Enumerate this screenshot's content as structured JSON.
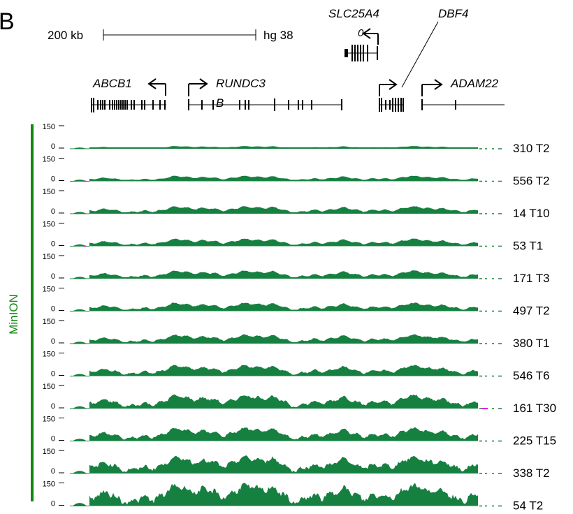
{
  "panel_label": "B",
  "scale_bar": {
    "length_label": "200 kb",
    "assembly_label": "hg 38"
  },
  "genes": [
    {
      "name": "ABCB1",
      "strand": "-"
    },
    {
      "name": "RUNDC3B",
      "name_line1": "RUNDC3",
      "name_line2": "B",
      "strand": "+"
    },
    {
      "name": "SLC25A4",
      "strand": "-",
      "extra_glyph": "0"
    },
    {
      "name": "DBF4",
      "strand": "+"
    },
    {
      "name": "ADAM22",
      "strand": "+"
    }
  ],
  "track_group_label": "MinION",
  "track_axis": {
    "max_label": "150",
    "min_label": "0"
  },
  "colors": {
    "coverage_fill": "#168040",
    "group_bar": "#0e8a0e",
    "group_label": "#0e8a0e",
    "gap_marker": "#e020e0",
    "ink": "#000000"
  },
  "tracks": [
    {
      "label": "310 T2",
      "amplitude": 0.12
    },
    {
      "label": "556 T2",
      "amplitude": 0.24
    },
    {
      "label": "14 T10",
      "amplitude": 0.33
    },
    {
      "label": "53 T1",
      "amplitude": 0.33
    },
    {
      "label": "171 T3",
      "amplitude": 0.36
    },
    {
      "label": "497 T2",
      "amplitude": 0.37
    },
    {
      "label": "380 T1",
      "amplitude": 0.4
    },
    {
      "label": "546 T6",
      "amplitude": 0.48
    },
    {
      "label": "161 T30",
      "amplitude": 0.6
    },
    {
      "label": "225 T15",
      "amplitude": 0.58
    },
    {
      "label": "338 T2",
      "amplitude": 0.75
    },
    {
      "label": "54 T2",
      "amplitude": 0.95
    }
  ]
}
